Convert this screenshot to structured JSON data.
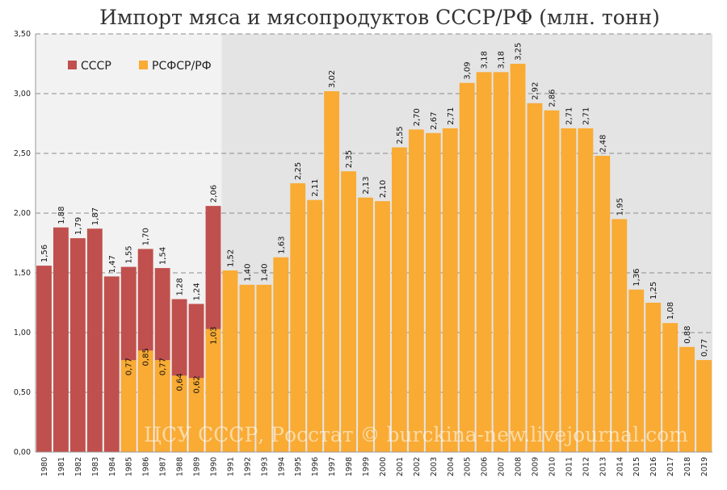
{
  "chart_data": {
    "type": "bar",
    "title": "Импорт мяса и мясопродуктов СССР/РФ  (млн. тонн)",
    "xlabel": "",
    "ylabel": "",
    "ylim": [
      0,
      3.5
    ],
    "y_ticks": [
      "0,00",
      "0,50",
      "1,00",
      "1,50",
      "2,00",
      "2,50",
      "3,00",
      "3,50"
    ],
    "grid": true,
    "legend_position": "top-left",
    "shaded_regions": [
      {
        "from": "1980",
        "to": "1990",
        "color": "#f2f2f2"
      },
      {
        "from": "1991",
        "to": "2019",
        "color": "#e4e4e4"
      }
    ],
    "categories": [
      "1980",
      "1981",
      "1982",
      "1983",
      "1984",
      "1985",
      "1986",
      "1987",
      "1988",
      "1989",
      "1990",
      "1991",
      "1992",
      "1993",
      "1994",
      "1995",
      "1996",
      "1997",
      "1998",
      "1999",
      "2000",
      "2001",
      "2002",
      "2003",
      "2004",
      "2005",
      "2006",
      "2007",
      "2008",
      "2009",
      "2010",
      "2011",
      "2012",
      "2013",
      "2014",
      "2015",
      "2016",
      "2017",
      "2018",
      "2019"
    ],
    "series": [
      {
        "name": "СССР",
        "color": "#c0504d",
        "values": [
          1.56,
          1.88,
          1.79,
          1.87,
          1.47,
          1.55,
          1.7,
          1.54,
          1.28,
          1.24,
          2.06,
          null,
          null,
          null,
          null,
          null,
          null,
          null,
          null,
          null,
          null,
          null,
          null,
          null,
          null,
          null,
          null,
          null,
          null,
          null,
          null,
          null,
          null,
          null,
          null,
          null,
          null,
          null,
          null,
          null
        ],
        "labels": [
          "1,56",
          "1,88",
          "1,79",
          "1,87",
          "1,47",
          "1,55",
          "1,70",
          "1,54",
          "1,28",
          "1,24",
          "2,06",
          "",
          "",
          "",
          "",
          "",
          "",
          "",
          "",
          "",
          "",
          "",
          "",
          "",
          "",
          "",
          "",
          "",
          "",
          "",
          "",
          "",
          "",
          "",
          "",
          "",
          "",
          "",
          "",
          ""
        ]
      },
      {
        "name": "РСФСР/РФ",
        "color": "#f9ab34",
        "values": [
          null,
          null,
          null,
          null,
          null,
          0.77,
          0.85,
          0.77,
          0.64,
          0.62,
          1.03,
          1.52,
          1.4,
          1.4,
          1.63,
          2.25,
          2.11,
          3.02,
          2.35,
          2.13,
          2.1,
          2.55,
          2.7,
          2.67,
          2.71,
          3.09,
          3.18,
          3.18,
          3.25,
          2.92,
          2.86,
          2.71,
          2.71,
          2.48,
          1.95,
          1.36,
          1.25,
          1.08,
          0.88,
          0.77
        ],
        "labels": [
          "",
          "",
          "",
          "",
          "",
          "0,77",
          "0,85",
          "0,77",
          "0,64",
          "0,62",
          "1,03",
          "1,52",
          "1,40",
          "1,40",
          "1,63",
          "2,25",
          "2,11",
          "3,02",
          "2,35",
          "2,13",
          "2,10",
          "2,55",
          "2,70",
          "2,67",
          "2,71",
          "3,09",
          "3,18",
          "3,18",
          "3,25",
          "2,92",
          "2,86",
          "2,71",
          "2,71",
          "2,48",
          "1,95",
          "1,36",
          "1,25",
          "1,08",
          "0,88",
          "0,77"
        ]
      }
    ],
    "watermark": "ЦСУ СССР, Росстат © burckina-new.livejournal.com"
  }
}
